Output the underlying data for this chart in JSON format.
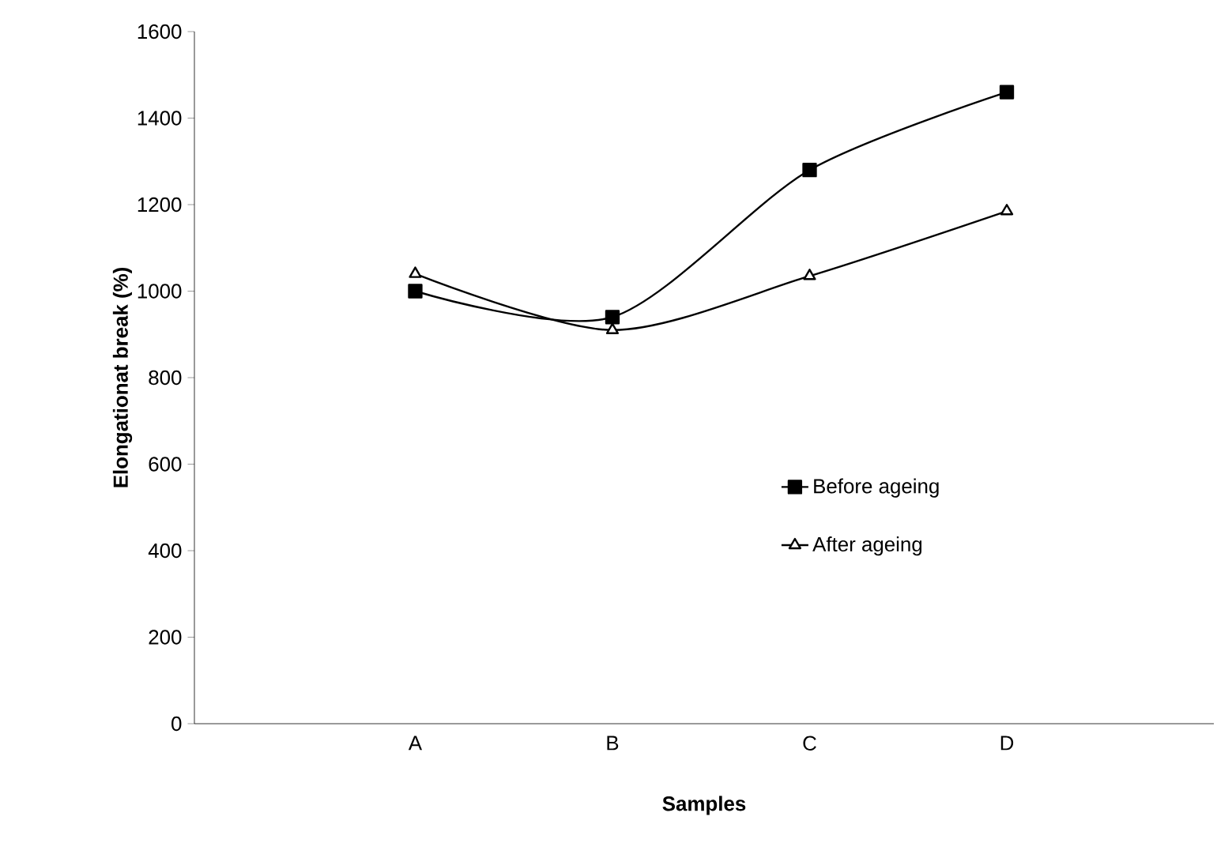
{
  "chart_data": {
    "type": "line",
    "xlabel": "Samples",
    "ylabel": "Elongationat break (%)",
    "categories": [
      "A",
      "B",
      "C",
      "D"
    ],
    "series": [
      {
        "name": "Before ageing",
        "color": "#000000",
        "marker": "square",
        "values": [
          1000,
          940,
          1280,
          1460
        ]
      },
      {
        "name": "After ageing",
        "color": "#000000",
        "marker": "triangle",
        "values": [
          1040,
          910,
          1035,
          1185
        ]
      }
    ],
    "ylim": [
      0,
      1600
    ],
    "yticks": [
      0,
      200,
      400,
      600,
      800,
      1000,
      1200,
      1400,
      1600
    ],
    "legend": "right",
    "grid": false,
    "line_style": "solid"
  }
}
